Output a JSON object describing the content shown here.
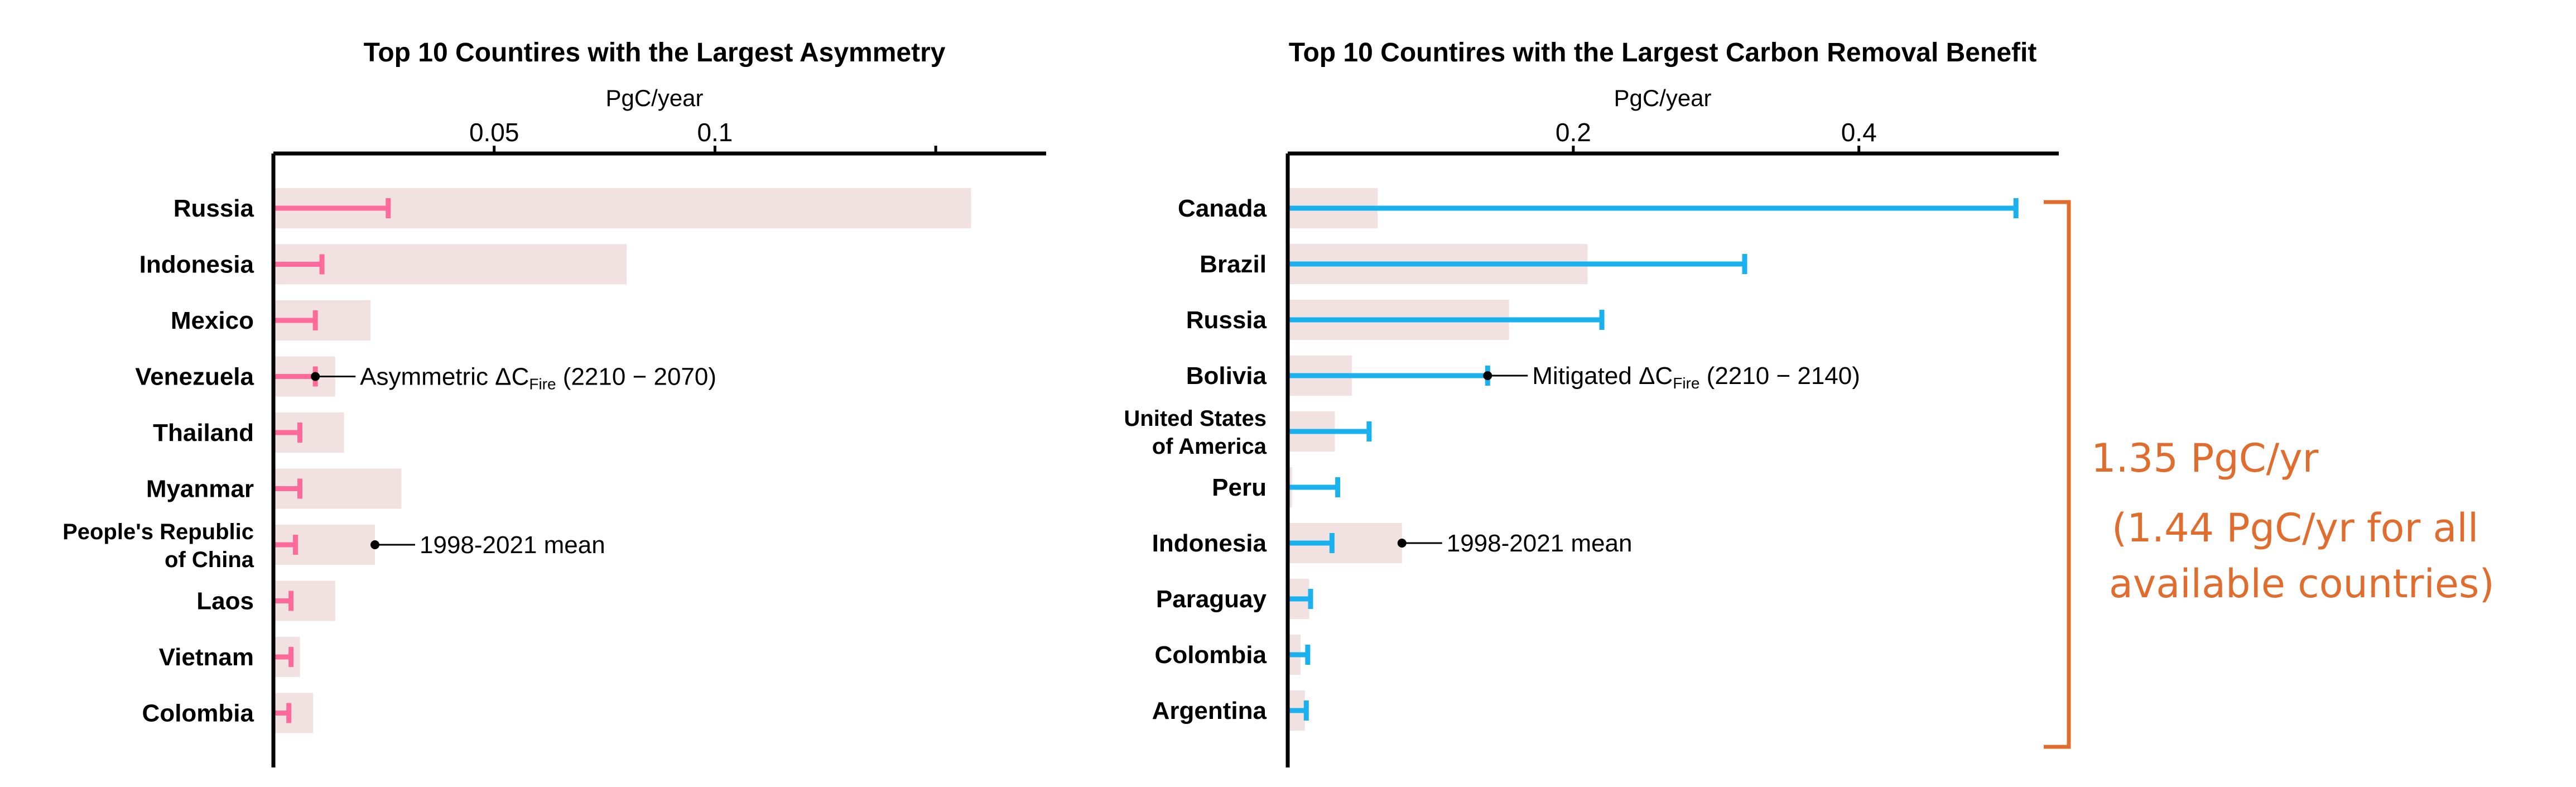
{
  "colors": {
    "mean_bar": "#f1e1e1",
    "asymmetry": "#ff6a9c",
    "removal": "#1ab2ee",
    "axis": "#000000",
    "bracket": "#e06d2e"
  },
  "chart_data": [
    {
      "type": "bar",
      "title": "Top 10 Countires with the Largest Asymmetry",
      "xlabel": "PgC/year",
      "xlim": [
        0,
        0.175
      ],
      "ticks": [
        0.05,
        0.1
      ],
      "tick_labels": [
        "0.05",
        "0.1"
      ],
      "categories": [
        "Russia",
        "Indonesia",
        "Mexico",
        "Venezuela",
        "Thailand",
        "Myanmar",
        "People's Republic of China",
        "Laos",
        "Vietnam",
        "Colombia"
      ],
      "category_lines": [
        [
          "Russia"
        ],
        [
          "Indonesia"
        ],
        [
          "Mexico"
        ],
        [
          "Venezuela"
        ],
        [
          "Thailand"
        ],
        [
          "Myanmar"
        ],
        [
          "People's Republic",
          "of China"
        ],
        [
          "Laos"
        ],
        [
          "Vietnam"
        ],
        [
          "Colombia"
        ]
      ],
      "series": [
        {
          "name": "1998-2021 mean",
          "kind": "bar",
          "values": [
            0.158,
            0.08,
            0.022,
            0.014,
            0.016,
            0.029,
            0.023,
            0.014,
            0.006,
            0.009
          ]
        },
        {
          "name": "Asymmetric ΔC Fire (2210 − 2070)",
          "kind": "errorbar",
          "values": [
            0.026,
            0.011,
            0.0095,
            0.0095,
            0.006,
            0.006,
            0.005,
            0.004,
            0.004,
            0.0035
          ]
        }
      ],
      "annotations": [
        {
          "category": "Venezuela",
          "series": 1,
          "text_before": "Asymmetric ΔC",
          "subscript": "Fire",
          "text_after": " (2210 − 2070)"
        },
        {
          "category": "People's Republic of China",
          "series": 0,
          "text_before": "1998-2021 mean",
          "subscript": "",
          "text_after": ""
        }
      ]
    },
    {
      "type": "bar",
      "title": "Top 10 Countires with the Largest Carbon Removal Benefit",
      "xlabel": "PgC/year",
      "xlim": [
        0,
        0.54
      ],
      "ticks": [
        0.2,
        0.4
      ],
      "tick_labels": [
        "0.2",
        "0.4"
      ],
      "categories": [
        "Canada",
        "Brazil",
        "Russia",
        "Bolivia",
        "United States of America",
        "Peru",
        "Indonesia",
        "Paraguay",
        "Colombia",
        "Argentina"
      ],
      "category_lines": [
        [
          "Canada"
        ],
        [
          "Brazil"
        ],
        [
          "Russia"
        ],
        [
          "Bolivia"
        ],
        [
          "United States",
          "of America"
        ],
        [
          "Peru"
        ],
        [
          "Indonesia"
        ],
        [
          "Paraguay"
        ],
        [
          "Colombia"
        ],
        [
          "Argentina"
        ]
      ],
      "series": [
        {
          "name": "1998-2021 mean",
          "kind": "bar",
          "values": [
            0.063,
            0.21,
            0.155,
            0.045,
            0.033,
            0.003,
            0.08,
            0.015,
            0.009,
            0.012
          ]
        },
        {
          "name": "Mitigated ΔC Fire (2210 − 2140)",
          "kind": "errorbar",
          "values": [
            0.51,
            0.32,
            0.22,
            0.14,
            0.057,
            0.035,
            0.031,
            0.016,
            0.014,
            0.013
          ]
        }
      ],
      "annotations": [
        {
          "category": "Bolivia",
          "series": 1,
          "text_before": "Mitigated ΔC",
          "subscript": "Fire",
          "text_after": " (2210 − 2140)"
        },
        {
          "category": "Indonesia",
          "series": 0,
          "text_before": "1998-2021 mean",
          "subscript": "",
          "text_after": ""
        }
      ]
    }
  ],
  "bracket_note": {
    "line1": "1.35 PgC/yr",
    "line2": "(1.44 PgC/yr for all",
    "line3": "available countries)"
  }
}
